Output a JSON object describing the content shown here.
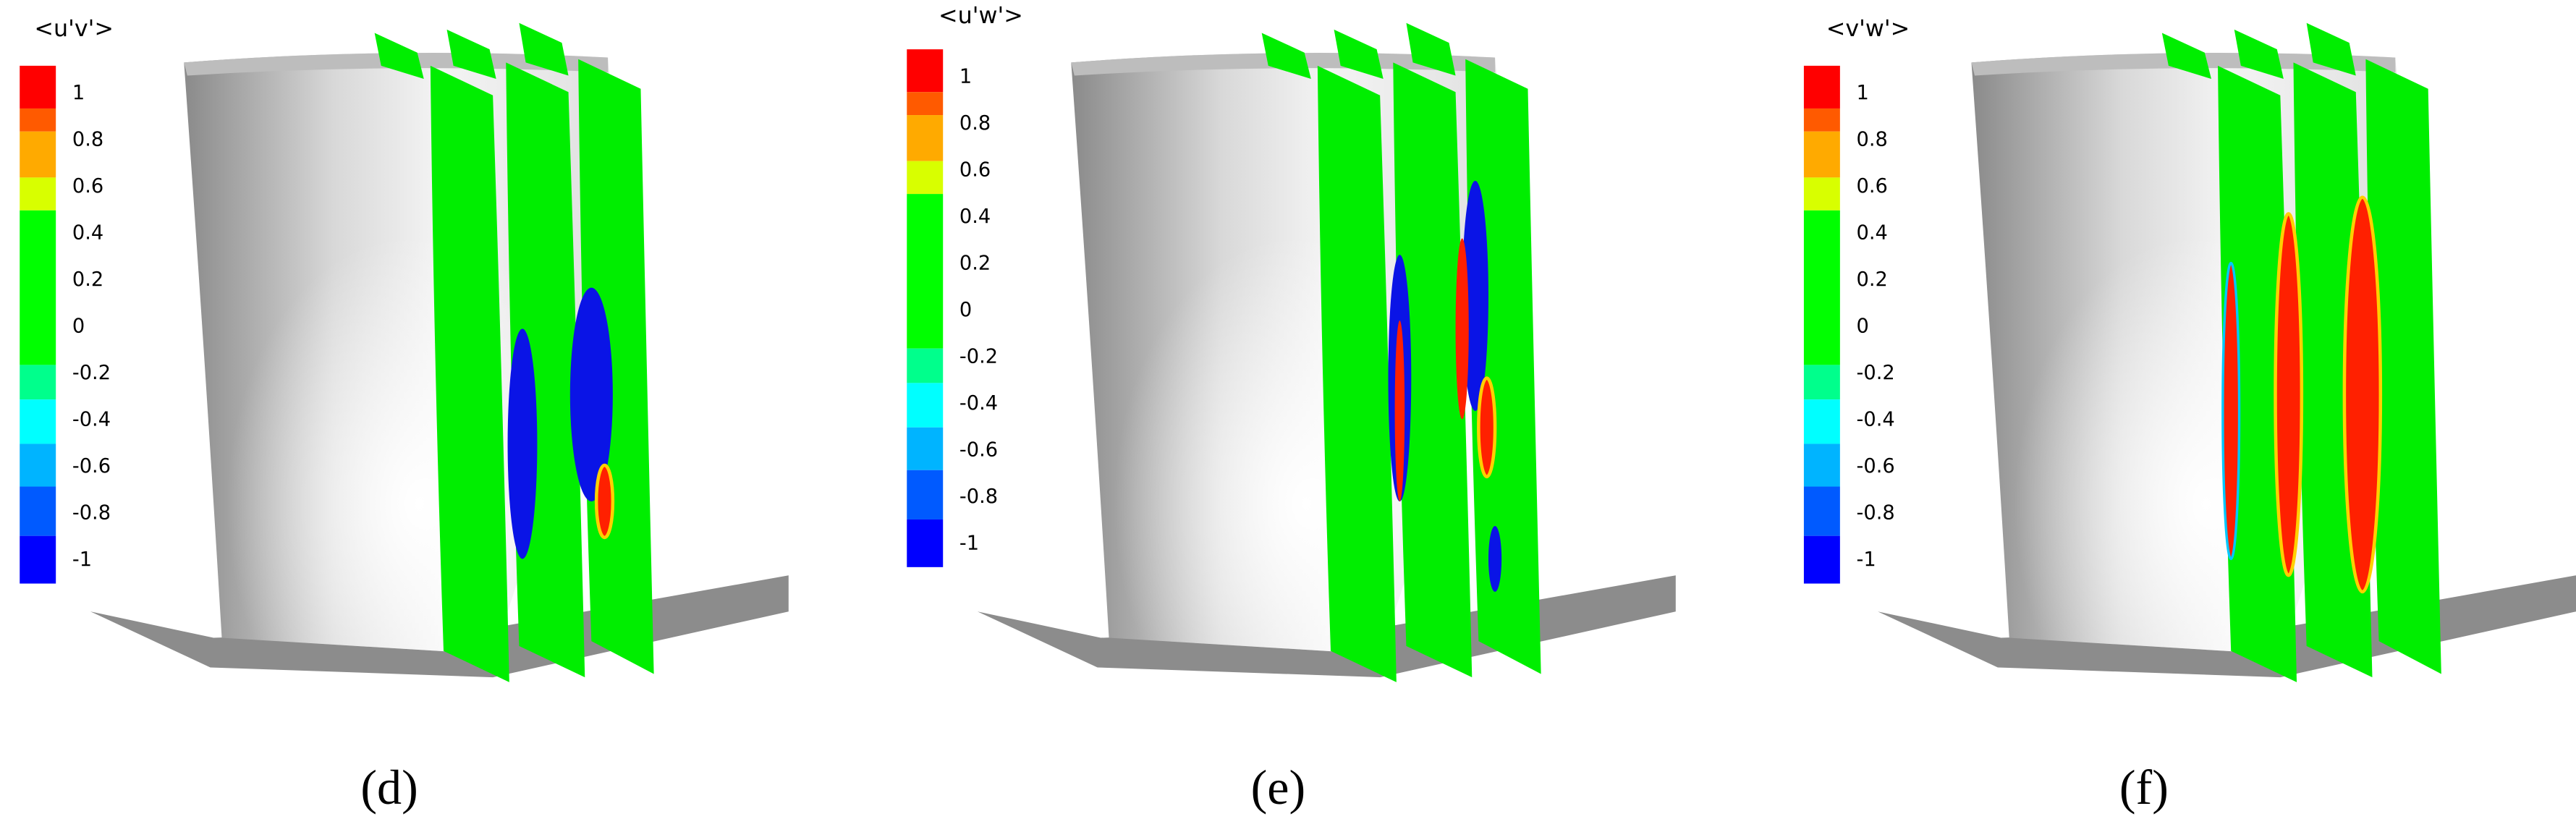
{
  "panels": [
    {
      "colorbar_title": "<u'v'>",
      "colorbar_ticks": [
        "1",
        "0.8",
        "0.6",
        "0.4",
        "0.2",
        "0",
        "-0.2",
        "-0.4",
        "-0.6",
        "-0.8",
        "-1"
      ],
      "caption": "(d)"
    },
    {
      "colorbar_title": "<u'w'>",
      "colorbar_ticks": [
        "1",
        "0.8",
        "0.6",
        "0.4",
        "0.2",
        "0",
        "-0.2",
        "-0.4",
        "-0.6",
        "-0.8",
        "-1"
      ],
      "caption": "(e)"
    },
    {
      "colorbar_title": "<v'w'>",
      "colorbar_ticks": [
        "1",
        "0.8",
        "0.6",
        "0.4",
        "0.2",
        "0",
        "-0.2",
        "-0.4",
        "-0.6",
        "-0.8",
        "-1"
      ],
      "caption": "(f)"
    }
  ]
}
